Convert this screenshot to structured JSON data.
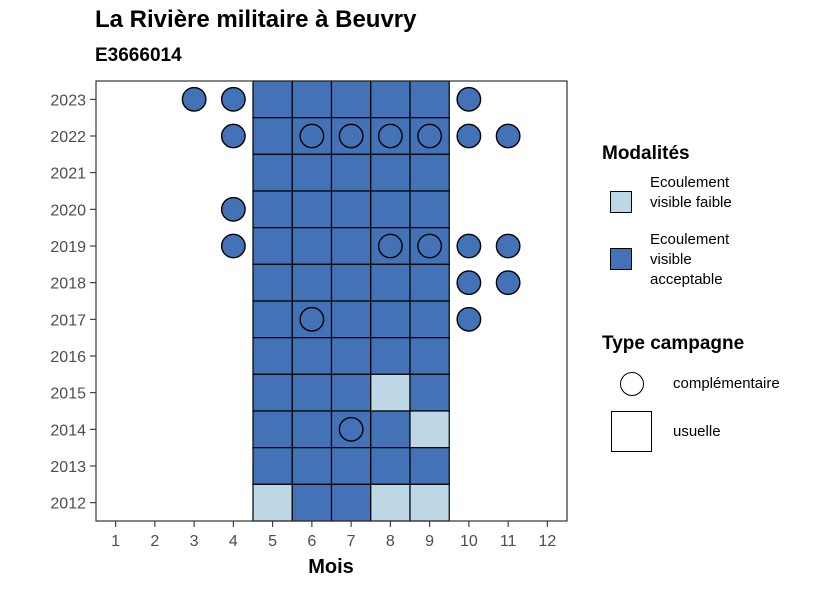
{
  "title": "La Rivière militaire à Beuvry",
  "subtitle": "E3666014",
  "legend": {
    "modalites_title": "Modalités",
    "modalites": [
      {
        "label": "Ecoulement visible faible",
        "color": "#BDD7E7"
      },
      {
        "label": "Ecoulement visible acceptable",
        "color": "#4372B6"
      }
    ],
    "campagne_title": "Type campagne",
    "campagnes": [
      {
        "label": "complémentaire",
        "shape": "circle"
      },
      {
        "label": "usuelle",
        "shape": "square"
      }
    ]
  },
  "chart_data": {
    "type": "heatmap",
    "title": "La Rivière militaire à Beuvry",
    "subtitle": "E3666014",
    "xlabel": "Mois",
    "ylabel": "",
    "x_ticks": [
      "1",
      "2",
      "3",
      "4",
      "5",
      "6",
      "7",
      "8",
      "9",
      "10",
      "11",
      "12"
    ],
    "y_ticks": [
      "2012",
      "2013",
      "2014",
      "2015",
      "2016",
      "2017",
      "2018",
      "2019",
      "2020",
      "2021",
      "2022",
      "2023"
    ],
    "xlim": [
      0.5,
      12.5
    ],
    "ylim": [
      2011.5,
      2023.5
    ],
    "grid": false,
    "legend_position": "right",
    "colors": {
      "faible": "#BDD7E7",
      "acceptable": "#4372B6",
      "background": "#FFFFFF",
      "outline": "#000000"
    },
    "usuelle": [
      {
        "year": 2023,
        "months": [
          5,
          6,
          7,
          8,
          9
        ],
        "faible": []
      },
      {
        "year": 2022,
        "months": [
          5,
          6,
          7,
          8,
          9
        ],
        "faible": []
      },
      {
        "year": 2021,
        "months": [
          5,
          6,
          7,
          8,
          9
        ],
        "faible": []
      },
      {
        "year": 2020,
        "months": [
          5,
          6,
          7,
          8,
          9
        ],
        "faible": []
      },
      {
        "year": 2019,
        "months": [
          5,
          6,
          7,
          8,
          9
        ],
        "faible": []
      },
      {
        "year": 2018,
        "months": [
          5,
          6,
          7,
          8,
          9
        ],
        "faible": []
      },
      {
        "year": 2017,
        "months": [
          5,
          6,
          7,
          8,
          9
        ],
        "faible": []
      },
      {
        "year": 2016,
        "months": [
          5,
          6,
          7,
          8,
          9
        ],
        "faible": []
      },
      {
        "year": 2015,
        "months": [
          5,
          6,
          7,
          8,
          9
        ],
        "faible": [
          8
        ]
      },
      {
        "year": 2014,
        "months": [
          5,
          6,
          7,
          8,
          9
        ],
        "faible": [
          9
        ]
      },
      {
        "year": 2013,
        "months": [
          5,
          6,
          7,
          8,
          9
        ],
        "faible": []
      },
      {
        "year": 2012,
        "months": [
          5,
          6,
          7,
          8,
          9
        ],
        "faible": [
          5,
          8,
          9
        ]
      }
    ],
    "complementaire": [
      {
        "year": 2023,
        "months": [
          3,
          4,
          10
        ]
      },
      {
        "year": 2022,
        "months": [
          4,
          6,
          7,
          8,
          9,
          10,
          11
        ]
      },
      {
        "year": 2020,
        "months": [
          4
        ]
      },
      {
        "year": 2019,
        "months": [
          4,
          8,
          9,
          10,
          11
        ]
      },
      {
        "year": 2018,
        "months": [
          10,
          11
        ]
      },
      {
        "year": 2017,
        "months": [
          6,
          10
        ]
      },
      {
        "year": 2014,
        "months": [
          7
        ]
      }
    ]
  }
}
